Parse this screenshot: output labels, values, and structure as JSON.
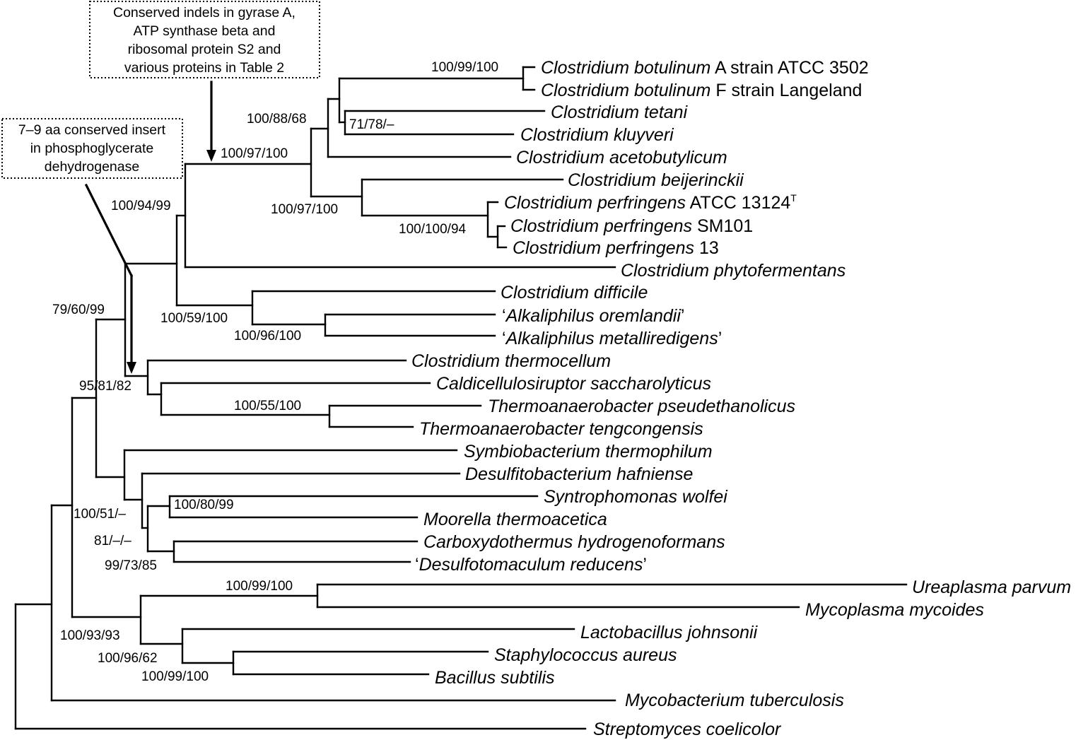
{
  "annotations": {
    "gyrase": [
      "Conserved indels in gyrase A,",
      "ATP synthase beta and",
      "ribosomal protein S2 and",
      "various proteins in Table 2"
    ],
    "pgdh": [
      "7–9 aa conserved insert",
      "in phosphoglycerate",
      "dehydrogenase"
    ]
  },
  "taxa": {
    "cbot_a": {
      "italic": "Clostridium botulinum",
      "plain": " A strain ATCC 3502"
    },
    "cbot_f": {
      "italic": "Clostridium botulinum",
      "plain": " F strain Langeland"
    },
    "ctetani": {
      "italic": "Clostridium tetani",
      "plain": ""
    },
    "ckluy": {
      "italic": "Clostridium kluyveri",
      "plain": ""
    },
    "cacet": {
      "italic": "Clostridium acetobutylicum",
      "plain": ""
    },
    "cbeij": {
      "italic": "Clostridium beijerinckii",
      "plain": ""
    },
    "cperf1": {
      "italic": "Clostridium perfringens",
      "plain": " ATCC 13124",
      "sup": "T"
    },
    "cperf2": {
      "italic": "Clostridium perfringens",
      "plain": " SM101"
    },
    "cperf3": {
      "italic": "Clostridium perfringens",
      "plain": " 13"
    },
    "cphyto": {
      "italic": "Clostridium phytofermentans",
      "plain": ""
    },
    "cdiff": {
      "italic": "Clostridium difficile",
      "plain": ""
    },
    "aorem": {
      "prefix": "‘",
      "italic": "Alkaliphilus oremlandii",
      "suffix": "’"
    },
    "ametal": {
      "prefix": "‘",
      "italic": "Alkaliphilus metalliredigens",
      "suffix": "’"
    },
    "ctherm": {
      "italic": "Clostridium thermocellum",
      "plain": ""
    },
    "csacch": {
      "italic": "Caldicellulosiruptor saccharolyticus",
      "plain": ""
    },
    "tpseud": {
      "italic": "Thermoanaerobacter pseudethanolicus",
      "plain": ""
    },
    "tteng": {
      "italic": "Thermoanaerobacter tengcongensis",
      "plain": ""
    },
    "sthermo": {
      "italic": "Symbiobacterium thermophilum",
      "plain": ""
    },
    "dhaf": {
      "italic": "Desulfitobacterium hafniense",
      "plain": ""
    },
    "swolfei": {
      "italic": "Syntrophomonas wolfei",
      "plain": ""
    },
    "mthermo": {
      "italic": "Moorella thermoacetica",
      "plain": ""
    },
    "chydro": {
      "italic": "Carboxydothermus hydrogenoformans",
      "plain": ""
    },
    "dred": {
      "prefix": "‘",
      "italic": "Desulfotomaculum reducens",
      "suffix": "’"
    },
    "uparvum": {
      "italic": "Ureaplasma parvum",
      "plain": ""
    },
    "mmyco": {
      "italic": "Mycoplasma mycoides",
      "plain": ""
    },
    "ljohn": {
      "italic": "Lactobacillus johnsonii",
      "plain": ""
    },
    "saureus": {
      "italic": "Staphylococcus aureus",
      "plain": ""
    },
    "bsub": {
      "italic": "Bacillus subtilis",
      "plain": ""
    },
    "mtb": {
      "italic": "Mycobacterium tuberculosis",
      "plain": ""
    },
    "scoel": {
      "italic": "Streptomyces coelicolor",
      "plain": ""
    }
  },
  "support": {
    "botulinum": "100/99/100",
    "tetani_group": "100/88/68",
    "kluyveri": "71/78/–",
    "clostridium_main": "100/97/100",
    "beijerinckii_group": "100/97/100",
    "perfringens": "100/100/94",
    "cluster_i": "100/94/99",
    "difficile_group": "100/59/100",
    "alkaliphilus": "100/96/100",
    "clostridia_a": "79/60/99",
    "clostridia_b": "95/81/82",
    "thermoanaerobacter": "100/55/100",
    "syntrophomonas": "100/80/99",
    "clostridia_c": "100/51/–",
    "clostridia_d": "81/–/–",
    "carboxydothermus": "99/73/85",
    "mollicutes": "100/99/100",
    "bacilli_group": "100/93/93",
    "lactobacillus": "100/96/62",
    "bacillus": "100/99/100"
  }
}
